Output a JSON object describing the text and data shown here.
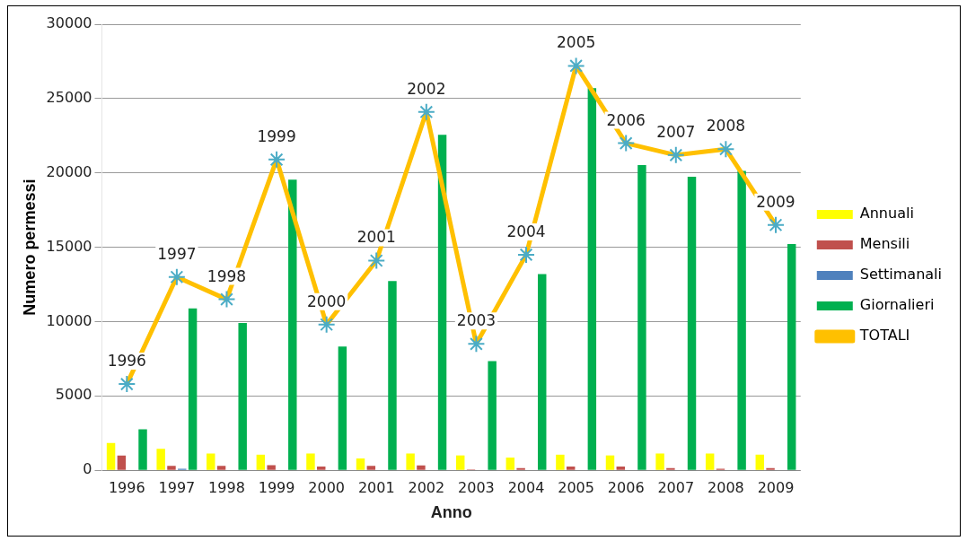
{
  "chart_data": {
    "type": "bar",
    "xlabel": "Anno",
    "ylabel": "Numero permessi",
    "categories": [
      "1996",
      "1997",
      "1998",
      "1999",
      "2000",
      "2001",
      "2002",
      "2003",
      "2004",
      "2005",
      "2006",
      "2007",
      "2008",
      "2009"
    ],
    "series": [
      {
        "name": "Annuali",
        "color": "#ffff00",
        "values": [
          1840,
          1440,
          1130,
          1050,
          1130,
          790,
          1130,
          1000,
          850,
          1050,
          1000,
          1130,
          1130,
          1050
        ]
      },
      {
        "name": "Mensili",
        "color": "#c0504d",
        "values": [
          1000,
          300,
          300,
          350,
          250,
          300,
          330,
          50,
          150,
          250,
          250,
          150,
          100,
          150
        ]
      },
      {
        "name": "Settimanali",
        "color": "#4f81bd",
        "values": [
          0,
          100,
          0,
          0,
          0,
          0,
          0,
          0,
          0,
          0,
          0,
          0,
          0,
          0
        ]
      },
      {
        "name": "Giornalieri",
        "color": "#00b050",
        "values": [
          2760,
          10890,
          9900,
          19550,
          8330,
          12730,
          22570,
          7350,
          13190,
          25700,
          20530,
          19750,
          20140,
          15220
        ]
      },
      {
        "name": "TOTALI",
        "type": "line",
        "color": "#ffc000",
        "marker": "cross",
        "values": [
          5800,
          13000,
          11500,
          20900,
          9800,
          14100,
          24100,
          8500,
          14500,
          27200,
          22000,
          21200,
          21600,
          16500
        ]
      }
    ],
    "ylim": [
      0,
      30000
    ],
    "yticks": [
      0,
      5000,
      10000,
      15000,
      20000,
      25000,
      30000
    ],
    "grid": "y",
    "legend": "right",
    "annotations": [
      {
        "text": "1996",
        "x": "1996",
        "y": 5800
      },
      {
        "text": "1997",
        "x": "1997",
        "y": 13000
      },
      {
        "text": "1998",
        "x": "1998",
        "y": 11500
      },
      {
        "text": "1999",
        "x": "1999",
        "y": 20900
      },
      {
        "text": "2000",
        "x": "2000",
        "y": 9800
      },
      {
        "text": "2001",
        "x": "2001",
        "y": 14100
      },
      {
        "text": "2002",
        "x": "2002",
        "y": 24100
      },
      {
        "text": "2003",
        "x": "2003",
        "y": 8500
      },
      {
        "text": "2004",
        "x": "2004",
        "y": 14500
      },
      {
        "text": "2005",
        "x": "2005",
        "y": 27200
      },
      {
        "text": "2006",
        "x": "2006",
        "y": 22000
      },
      {
        "text": "2007",
        "x": "2007",
        "y": 21200
      },
      {
        "text": "2008",
        "x": "2008",
        "y": 21600
      },
      {
        "text": "2009",
        "x": "2009",
        "y": 16500
      }
    ]
  }
}
